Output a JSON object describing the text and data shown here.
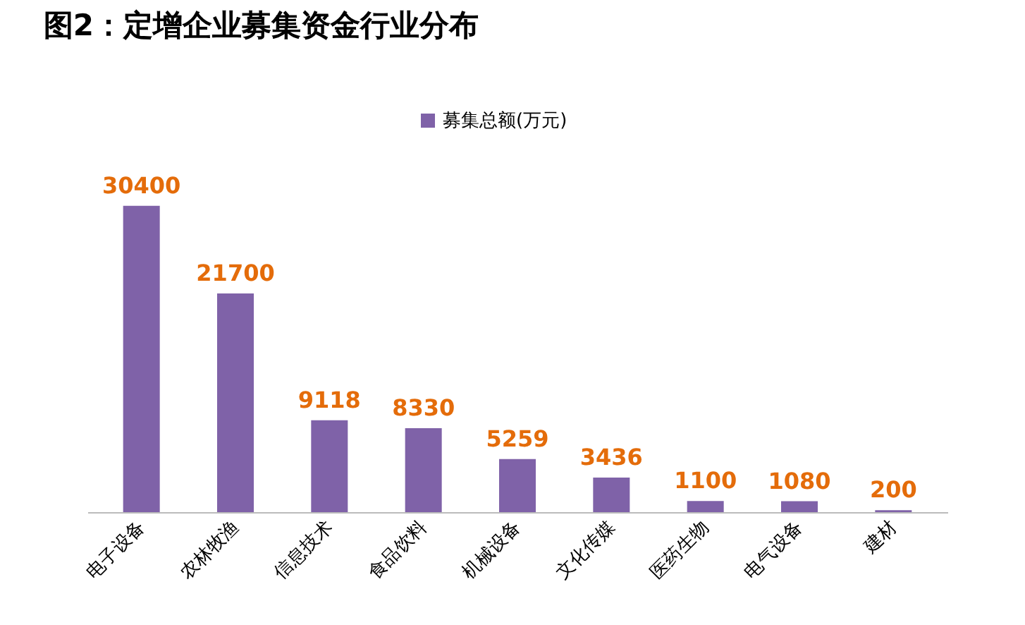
{
  "chart_data": {
    "type": "bar",
    "title": "图2：定增企业募集资金行业分布",
    "categories": [
      "电子设备",
      "农林牧渔",
      "信息技术",
      "食品饮料",
      "机械设备",
      "文化传媒",
      "医药生物",
      "电气设备",
      "建材"
    ],
    "series": [
      {
        "name": "募集总额(万元)",
        "color": "#7f62a8",
        "values": [
          30400,
          21700,
          9118,
          8330,
          5259,
          3436,
          1100,
          1080,
          200
        ]
      }
    ],
    "data_labels": true,
    "legend": "top",
    "grid": false
  }
}
